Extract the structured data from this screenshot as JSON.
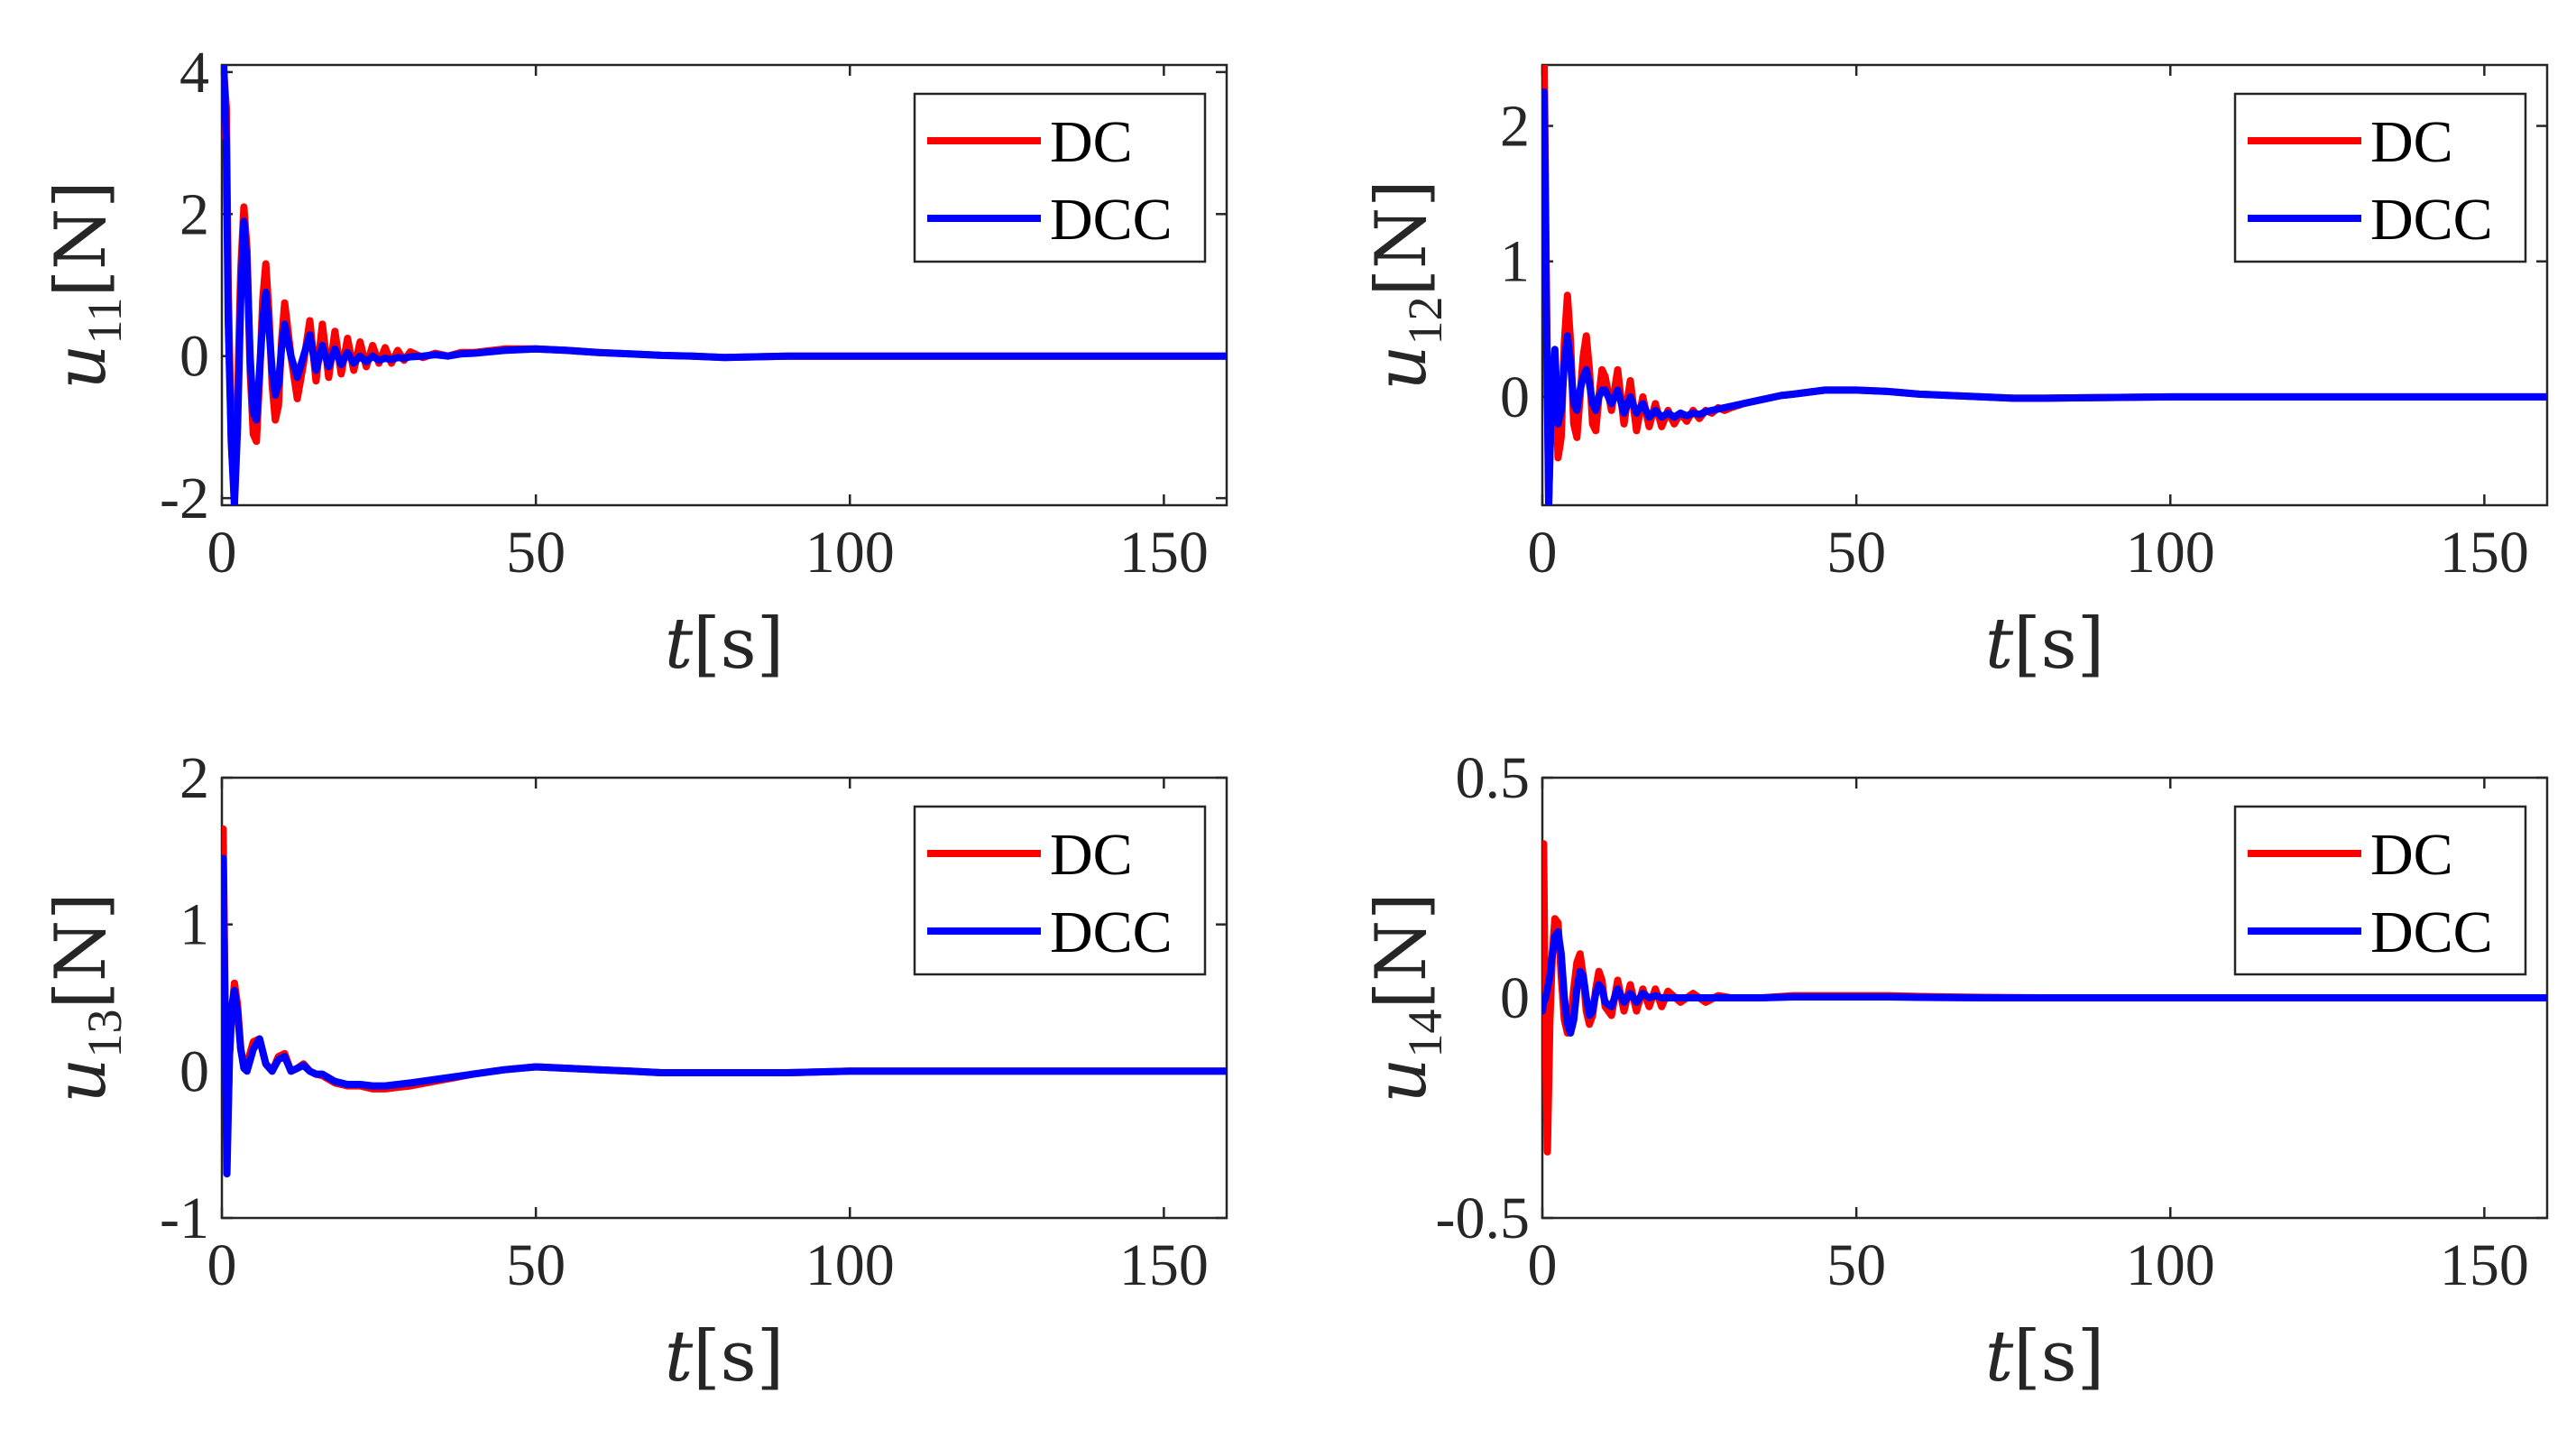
{
  "figure": {
    "type": "multi-panel"
  },
  "series_styles": {
    "DC": "#ff0000",
    "DCC": "#0000ff"
  },
  "chart_data": [
    {
      "type": "line",
      "id": "u11",
      "ylabel_main": "u",
      "ylabel_sub": "11",
      "ylabel_unit": "[N]",
      "xlabel_main": "t",
      "xlabel_unit": "[s]",
      "xlim": [
        0,
        160
      ],
      "ylim": [
        -2.1,
        4.1
      ],
      "xticks": [
        0,
        50,
        100,
        150
      ],
      "yticks": [
        -2,
        0,
        2,
        4
      ],
      "ytick_labels": [
        "-2",
        "0",
        "2",
        "4"
      ],
      "xtick_labels": [
        "0",
        "50",
        "100",
        "150"
      ],
      "legend": [
        "DC",
        "DCC"
      ],
      "legend_position": "top-right",
      "series": [
        {
          "name": "DC",
          "color": "#ff0000",
          "x": [
            0,
            0.3,
            0.7,
            1,
            1.5,
            2,
            2.5,
            3,
            3.5,
            4,
            4.5,
            5,
            5.5,
            6,
            6.5,
            7,
            7.5,
            8,
            8.5,
            9,
            9.5,
            10,
            11,
            12,
            13,
            14,
            15,
            16,
            17,
            18,
            19,
            20,
            21,
            22,
            23,
            24,
            25,
            26,
            27,
            28,
            29,
            30,
            32,
            34,
            36,
            38,
            40,
            45,
            50,
            55,
            60,
            65,
            70,
            75,
            80,
            85,
            90,
            100,
            110,
            120,
            130,
            140,
            150,
            160
          ],
          "y": [
            3.1,
            4.0,
            3.5,
            1.0,
            -1.2,
            -2.0,
            -0.6,
            1.2,
            2.1,
            1.5,
            -0.2,
            -1.1,
            -1.2,
            -0.3,
            0.8,
            1.3,
            0.6,
            -0.4,
            -0.9,
            -0.7,
            0.2,
            0.75,
            0.0,
            -0.6,
            -0.1,
            0.5,
            -0.35,
            0.45,
            -0.3,
            0.35,
            -0.25,
            0.25,
            -0.2,
            0.2,
            -0.15,
            0.15,
            -0.1,
            0.12,
            -0.1,
            0.08,
            -0.06,
            0.06,
            -0.02,
            0.04,
            0.0,
            0.05,
            0.05,
            0.1,
            0.1,
            0.08,
            0.05,
            0.03,
            0.01,
            0.0,
            -0.02,
            -0.01,
            0.0,
            0.0,
            0.0,
            0.0,
            0.0,
            0.0,
            0.0,
            0.0
          ]
        },
        {
          "name": "DCC",
          "color": "#0000ff",
          "x": [
            0,
            0.3,
            0.7,
            1,
            1.5,
            2,
            2.5,
            3,
            3.5,
            4,
            4.5,
            5,
            5.5,
            6,
            6.5,
            7,
            7.5,
            8,
            8.5,
            9,
            9.5,
            10,
            11,
            12,
            13,
            14,
            15,
            16,
            17,
            18,
            19,
            20,
            21,
            22,
            23,
            24,
            25,
            26,
            27,
            28,
            29,
            30,
            32,
            34,
            36,
            38,
            40,
            45,
            50,
            55,
            60,
            65,
            70,
            75,
            80,
            85,
            90,
            100,
            110,
            120,
            130,
            140,
            150,
            160
          ],
          "y": [
            3.5,
            4.1,
            3.0,
            0.5,
            -1.2,
            -2.1,
            -1.0,
            0.8,
            1.9,
            1.3,
            0.0,
            -0.8,
            -0.9,
            -0.2,
            0.5,
            0.9,
            0.4,
            -0.2,
            -0.55,
            -0.4,
            0.1,
            0.45,
            0.0,
            -0.3,
            0.0,
            0.3,
            -0.2,
            0.15,
            -0.15,
            0.1,
            -0.12,
            0.05,
            -0.1,
            0.0,
            -0.08,
            0.0,
            -0.06,
            -0.03,
            -0.05,
            -0.02,
            -0.03,
            -0.01,
            0.0,
            0.02,
            0.0,
            0.03,
            0.04,
            0.08,
            0.1,
            0.08,
            0.05,
            0.03,
            0.01,
            0.0,
            -0.02,
            -0.01,
            0.0,
            0.0,
            0.0,
            0.0,
            0.0,
            0.0,
            0.0,
            0.0
          ]
        }
      ]
    },
    {
      "type": "line",
      "id": "u12",
      "ylabel_main": "u",
      "ylabel_sub": "12",
      "ylabel_unit": "[N]",
      "xlabel_main": "t",
      "xlabel_unit": "[s]",
      "xlim": [
        0,
        160
      ],
      "ylim": [
        -0.8,
        2.45
      ],
      "xticks": [
        0,
        50,
        100,
        150
      ],
      "yticks": [
        0,
        1,
        2
      ],
      "ytick_labels": [
        "0",
        "1",
        "2"
      ],
      "xtick_labels": [
        "0",
        "50",
        "100",
        "150"
      ],
      "legend": [
        "DC",
        "DCC"
      ],
      "legend_position": "top-right",
      "series": [
        {
          "name": "DC",
          "color": "#ff0000",
          "x": [
            0,
            0.3,
            0.6,
            1,
            1.5,
            2,
            2.5,
            3,
            3.5,
            4,
            4.5,
            5,
            5.5,
            6,
            6.5,
            7,
            7.5,
            8,
            8.5,
            9,
            9.5,
            10,
            11,
            12,
            13,
            14,
            15,
            16,
            17,
            18,
            19,
            20,
            21,
            22,
            23,
            24,
            25,
            26,
            27,
            28,
            29,
            30,
            32,
            34,
            36,
            38,
            40,
            45,
            50,
            55,
            60,
            65,
            70,
            75,
            80,
            90,
            100,
            110,
            120,
            130,
            140,
            150,
            160
          ],
          "y": [
            1.7,
            2.45,
            1.0,
            -0.75,
            0.0,
            0.3,
            -0.45,
            -0.3,
            0.4,
            0.75,
            0.4,
            -0.2,
            -0.3,
            0.0,
            0.3,
            0.45,
            0.2,
            -0.2,
            -0.25,
            0.0,
            0.2,
            0.15,
            -0.1,
            0.2,
            -0.2,
            0.12,
            -0.25,
            0.0,
            -0.22,
            -0.05,
            -0.22,
            -0.1,
            -0.2,
            -0.12,
            -0.18,
            -0.1,
            -0.16,
            -0.1,
            -0.12,
            -0.08,
            -0.1,
            -0.08,
            -0.05,
            -0.03,
            -0.01,
            0.01,
            0.02,
            0.05,
            0.05,
            0.04,
            0.02,
            0.01,
            0.0,
            -0.01,
            -0.01,
            -0.005,
            0.0,
            0.0,
            0.0,
            0.0,
            0.0,
            0.0,
            0.0
          ]
        },
        {
          "name": "DCC",
          "color": "#0000ff",
          "x": [
            0,
            0.3,
            0.6,
            1,
            1.5,
            2,
            2.5,
            3,
            3.5,
            4,
            4.5,
            5,
            5.5,
            6,
            6.5,
            7,
            7.5,
            8,
            8.5,
            9,
            9.5,
            10,
            11,
            12,
            13,
            14,
            15,
            16,
            17,
            18,
            19,
            20,
            21,
            22,
            23,
            24,
            25,
            26,
            27,
            28,
            29,
            30,
            32,
            34,
            36,
            38,
            40,
            45,
            50,
            55,
            60,
            65,
            70,
            75,
            80,
            90,
            100,
            110,
            120,
            130,
            140,
            150,
            160
          ],
          "y": [
            1.6,
            2.25,
            0.8,
            -0.8,
            0.1,
            0.35,
            -0.2,
            -0.1,
            0.25,
            0.45,
            0.25,
            -0.05,
            -0.1,
            0.05,
            0.15,
            0.2,
            0.1,
            -0.05,
            -0.1,
            0.0,
            0.05,
            0.05,
            -0.05,
            0.05,
            -0.12,
            0.0,
            -0.12,
            -0.05,
            -0.15,
            -0.1,
            -0.15,
            -0.12,
            -0.15,
            -0.12,
            -0.14,
            -0.12,
            -0.13,
            -0.11,
            -0.1,
            -0.09,
            -0.08,
            -0.07,
            -0.05,
            -0.03,
            -0.01,
            0.01,
            0.02,
            0.05,
            0.05,
            0.04,
            0.02,
            0.01,
            0.0,
            -0.01,
            -0.01,
            -0.005,
            0.0,
            0.0,
            0.0,
            0.0,
            0.0,
            0.0,
            0.0
          ]
        }
      ]
    },
    {
      "type": "line",
      "id": "u13",
      "ylabel_main": "u",
      "ylabel_sub": "13",
      "ylabel_unit": "[N]",
      "xlabel_main": "t",
      "xlabel_unit": "[s]",
      "xlim": [
        0,
        160
      ],
      "ylim": [
        -1,
        2
      ],
      "xticks": [
        0,
        50,
        100,
        150
      ],
      "yticks": [
        -1,
        0,
        1,
        2
      ],
      "ytick_labels": [
        "-1",
        "0",
        "1",
        "2"
      ],
      "xtick_labels": [
        "0",
        "50",
        "100",
        "150"
      ],
      "legend": [
        "DC",
        "DCC"
      ],
      "legend_position": "top-right",
      "series": [
        {
          "name": "DC",
          "color": "#ff0000",
          "x": [
            0,
            0.2,
            0.5,
            0.8,
            1.2,
            1.6,
            2,
            2.5,
            3,
            3.5,
            4,
            5,
            6,
            7,
            8,
            9,
            10,
            11,
            12,
            13,
            14,
            15,
            16,
            18,
            20,
            22,
            24,
            26,
            28,
            30,
            35,
            40,
            45,
            50,
            55,
            60,
            65,
            70,
            80,
            90,
            100,
            110,
            120,
            130,
            140,
            150,
            160
          ],
          "y": [
            1.0,
            1.65,
            0.5,
            -0.6,
            0.1,
            0.4,
            0.6,
            0.45,
            0.15,
            0.05,
            0.05,
            0.2,
            0.22,
            0.05,
            0.0,
            0.1,
            0.12,
            0.0,
            0.02,
            0.05,
            0.0,
            -0.02,
            -0.03,
            -0.08,
            -0.1,
            -0.1,
            -0.12,
            -0.12,
            -0.11,
            -0.1,
            -0.06,
            -0.02,
            0.01,
            0.03,
            0.02,
            0.01,
            0.0,
            -0.01,
            -0.01,
            -0.01,
            0.0,
            0.0,
            0.0,
            0.0,
            0.0,
            0.0,
            0.0
          ]
        },
        {
          "name": "DCC",
          "color": "#0000ff",
          "x": [
            0,
            0.2,
            0.5,
            0.8,
            1.2,
            1.6,
            2,
            2.5,
            3,
            3.5,
            4,
            5,
            6,
            7,
            8,
            9,
            10,
            11,
            12,
            13,
            14,
            15,
            16,
            18,
            20,
            22,
            24,
            26,
            28,
            30,
            35,
            40,
            45,
            50,
            55,
            60,
            65,
            70,
            80,
            90,
            100,
            110,
            120,
            130,
            140,
            150,
            160
          ],
          "y": [
            0.9,
            1.45,
            0.4,
            -0.7,
            0.1,
            0.45,
            0.55,
            0.4,
            0.15,
            0.02,
            0.0,
            0.15,
            0.22,
            0.05,
            0.0,
            0.08,
            0.1,
            0.0,
            0.02,
            0.04,
            0.0,
            -0.02,
            -0.02,
            -0.07,
            -0.09,
            -0.09,
            -0.1,
            -0.1,
            -0.09,
            -0.08,
            -0.05,
            -0.02,
            0.01,
            0.03,
            0.02,
            0.01,
            0.0,
            -0.01,
            -0.01,
            -0.01,
            0.0,
            0.0,
            0.0,
            0.0,
            0.0,
            0.0,
            0.0
          ]
        }
      ]
    },
    {
      "type": "line",
      "id": "u14",
      "ylabel_main": "u",
      "ylabel_sub": "14",
      "ylabel_unit": "[N]",
      "xlabel_main": "t",
      "xlabel_unit": "[s]",
      "xlim": [
        0,
        160
      ],
      "ylim": [
        -0.5,
        0.5
      ],
      "xticks": [
        0,
        50,
        100,
        150
      ],
      "yticks": [
        -0.5,
        0,
        0.5
      ],
      "ytick_labels": [
        "-0.5",
        "0",
        "0.5"
      ],
      "xtick_labels": [
        "0",
        "50",
        "100",
        "150"
      ],
      "legend": [
        "DC",
        "DCC"
      ],
      "legend_position": "top-right",
      "series": [
        {
          "name": "DC",
          "color": "#ff0000",
          "x": [
            0,
            0.2,
            0.5,
            0.8,
            1.2,
            1.6,
            2,
            2.5,
            3,
            3.5,
            4,
            4.5,
            5,
            5.5,
            6,
            6.5,
            7,
            7.5,
            8,
            8.5,
            9,
            9.5,
            10,
            11,
            12,
            13,
            14,
            15,
            16,
            17,
            18,
            19,
            20,
            22,
            24,
            26,
            28,
            30,
            35,
            40,
            45,
            50,
            55,
            60,
            70,
            80,
            90,
            100,
            120,
            140,
            160
          ],
          "y": [
            0.2,
            0.35,
            -0.1,
            -0.35,
            -0.05,
            0.1,
            0.18,
            0.17,
            0.05,
            -0.05,
            -0.08,
            -0.06,
            0.02,
            0.08,
            0.1,
            0.05,
            -0.03,
            -0.06,
            -0.04,
            0.02,
            0.06,
            0.04,
            -0.02,
            -0.04,
            0.04,
            -0.03,
            0.03,
            -0.03,
            0.02,
            -0.02,
            0.02,
            -0.02,
            0.015,
            -0.01,
            0.01,
            -0.01,
            0.005,
            0.0,
            0.0,
            0.005,
            0.005,
            0.005,
            0.005,
            0.003,
            0.001,
            0.0,
            0.0,
            0.0,
            0.0,
            0.0,
            0.0
          ]
        },
        {
          "name": "DCC",
          "color": "#0000ff",
          "x": [
            0,
            0.2,
            0.5,
            0.8,
            1.2,
            1.6,
            2,
            2.5,
            3,
            3.5,
            4,
            4.5,
            5,
            5.5,
            6,
            6.5,
            7,
            7.5,
            8,
            8.5,
            9,
            9.5,
            10,
            11,
            12,
            13,
            14,
            15,
            16,
            17,
            18,
            19,
            20,
            22,
            24,
            26,
            28,
            30,
            35,
            40,
            45,
            50,
            55,
            60,
            70,
            80,
            90,
            100,
            120,
            140,
            160
          ],
          "y": [
            -0.03,
            -0.01,
            0.0,
            0.02,
            0.05,
            0.1,
            0.14,
            0.15,
            0.1,
            0.0,
            -0.06,
            -0.08,
            -0.05,
            0.02,
            0.06,
            0.05,
            0.0,
            -0.04,
            -0.03,
            0.01,
            0.03,
            0.02,
            -0.01,
            -0.02,
            0.02,
            -0.01,
            0.01,
            -0.01,
            0.01,
            0.0,
            0.005,
            0.0,
            0.0,
            0.0,
            0.0,
            0.0,
            0.0,
            0.0,
            0.0,
            0.002,
            0.002,
            0.002,
            0.002,
            0.001,
            0.0,
            0.0,
            0.0,
            0.0,
            0.0,
            0.0,
            0.0
          ]
        }
      ]
    }
  ]
}
